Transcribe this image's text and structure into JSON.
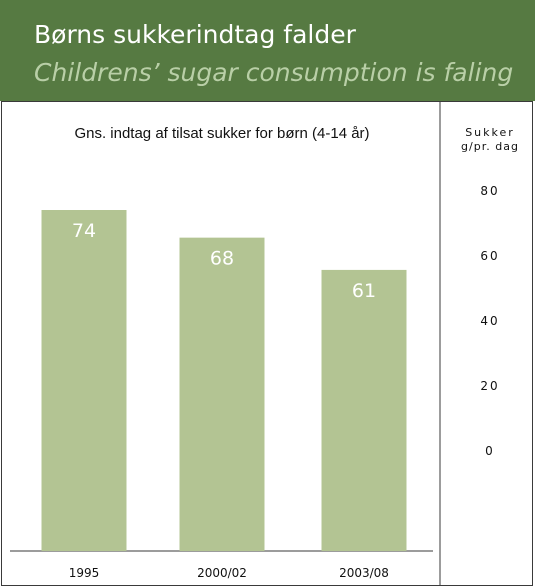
{
  "header": {
    "title": "Børns sukkerindtag falder",
    "subtitle": "Childrens’ sugar consumption is faling"
  },
  "colors": {
    "header_bg": "#567a42",
    "subtitle": "#b9cfa7",
    "bar": "#b3c493",
    "bar_label": "#ffffff"
  },
  "chart_data": {
    "type": "bar",
    "title": "Gns. indtag af tilsat sukker for børn (4-14 år)",
    "ylabel_line1": "Sukker",
    "ylabel_line2": "g/pr. dag",
    "categories": [
      "1995",
      "2000/02",
      "2003/08"
    ],
    "series": [
      {
        "values": [
          74,
          68,
          61
        ]
      }
    ],
    "yticks": [
      80,
      60,
      40,
      20,
      0
    ],
    "ylim": [
      0,
      80
    ],
    "grid": false,
    "legend": "none",
    "data_labels": true
  }
}
